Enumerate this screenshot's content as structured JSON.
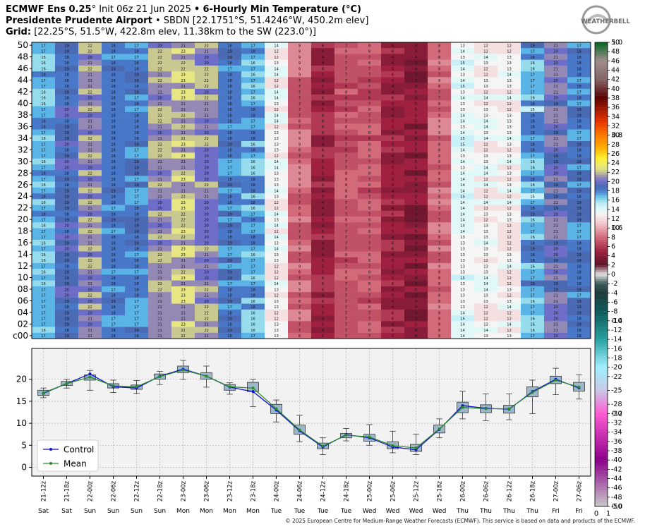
{
  "header": {
    "line1_bold_a": "ECMWF Ens 0.25",
    "line1_deg": "°",
    "line1_init": "Init 06z 21 Jun 2025",
    "line1_sep": "•",
    "line1_bold_b": "6-Hourly Min Temperature (°C)",
    "line2_bold": "Presidente Prudente Airport",
    "line2_rest": "• SBDN [22.1751°S, 51.4246°W, 450.2m elev]",
    "line3_bold": "Grid:",
    "line3_rest": "[22.25°S, 51.5°W, 422.8m elev, 11.38km to the SW (223.0°)]"
  },
  "logo": {
    "text": "WEATHERBELL"
  },
  "copyright": "© 2025 European Centre for Medium-Range Weather Forecasts (ECMWF). This service is based on data and products of the ECMWF.",
  "chart_data": [
    {
      "type": "heatmap",
      "title": "",
      "ylabel": "",
      "y_categories": [
        "c00",
        "02",
        "04",
        "06",
        "08",
        "10",
        "12",
        "14",
        "16",
        "18",
        "20",
        "22",
        "24",
        "26",
        "28",
        "30",
        "32",
        "34",
        "36",
        "38",
        "40",
        "42",
        "44",
        "46",
        "48",
        "50"
      ],
      "x_categories": [
        "21-12z",
        "21-18z",
        "22-00z",
        "22-06z",
        "22-12z",
        "22-18z",
        "23-00z",
        "23-06z",
        "23-12z",
        "23-18z",
        "24-00z",
        "24-06z",
        "24-12z",
        "24-18z",
        "25-00z",
        "25-06z",
        "25-12z",
        "25-18z",
        "26-00z",
        "26-06z",
        "26-12z",
        "26-18z",
        "27-00z",
        "27-06z"
      ],
      "control_row": [
        17,
        19,
        21,
        18,
        18,
        21,
        22,
        21,
        18,
        17,
        13,
        8,
        5,
        7,
        7,
        5,
        4,
        8,
        14,
        13,
        13,
        17,
        20,
        18
      ],
      "member_spread": [
        1,
        1,
        1.2,
        0.8,
        1,
        1,
        1.5,
        1.5,
        1,
        1.5,
        1.2,
        1.5,
        1.5,
        1,
        1.2,
        1.5,
        1.5,
        1.2,
        1.5,
        1.2,
        1.2,
        2,
        1.5,
        1.2
      ],
      "colorbar": {
        "ticks": [
          50,
          48,
          46,
          44,
          42,
          40,
          38,
          36,
          34,
          32,
          30,
          28,
          26,
          24,
          22,
          20,
          18,
          16,
          14,
          12,
          10,
          8,
          6,
          4,
          2,
          0,
          -2,
          -4,
          -6,
          -8,
          -10,
          -12,
          -14,
          -16,
          -18,
          -20,
          -22,
          -25,
          -28,
          -30,
          -32,
          -34,
          -36,
          -38,
          -40,
          -42,
          -44,
          -46,
          -48,
          -50
        ],
        "overlay_ticks": [
          1.0,
          0.8,
          0.6,
          0.4,
          0.2,
          0.0
        ],
        "bottom_labels": [
          "0",
          "1"
        ]
      }
    },
    {
      "type": "line",
      "title": "",
      "xlabel": "",
      "ylabel": "",
      "ylim": [
        -2,
        27
      ],
      "yticks": [
        0,
        5,
        10,
        15,
        20
      ],
      "grid": true,
      "legend": "bottom-left",
      "x": [
        "21-12z",
        "21-18z",
        "22-00z",
        "22-06z",
        "22-12z",
        "22-18z",
        "23-00z",
        "23-06z",
        "23-12z",
        "23-18z",
        "24-00z",
        "24-06z",
        "24-12z",
        "24-18z",
        "25-00z",
        "25-06z",
        "25-12z",
        "25-18z",
        "26-00z",
        "26-06z",
        "26-12z",
        "26-18z",
        "27-00z",
        "27-06z"
      ],
      "weekdays": [
        "Sat",
        "Sat",
        "Sun",
        "Sun",
        "Sun",
        "Sun",
        "Mon",
        "Mon",
        "Mon",
        "Mon",
        "Tue",
        "Tue",
        "Tue",
        "Tue",
        "Wed",
        "Wed",
        "Wed",
        "Wed",
        "Thu",
        "Thu",
        "Thu",
        "Thu",
        "Fri",
        "Fri"
      ],
      "series": [
        {
          "name": "Control",
          "color": "#1010d0",
          "values": [
            16.8,
            19.0,
            21.2,
            18.3,
            18.0,
            20.7,
            22.3,
            20.7,
            18.2,
            17.2,
            13.0,
            8.3,
            4.6,
            7.4,
            6.7,
            4.6,
            4.0,
            8.6,
            14.0,
            13.4,
            13.2,
            17.2,
            20.0,
            18.0
          ]
        },
        {
          "name": "Mean",
          "color": "#2a8a2a",
          "values": [
            16.9,
            19.0,
            20.5,
            18.5,
            18.3,
            20.6,
            22.1,
            20.7,
            18.3,
            18.0,
            13.3,
            8.5,
            4.8,
            7.3,
            6.9,
            4.9,
            4.4,
            8.7,
            13.6,
            13.3,
            13.3,
            17.0,
            19.8,
            18.2
          ]
        }
      ],
      "boxes": [
        {
          "whisker": [
            15.8,
            18.0
          ],
          "box": [
            16.3,
            17.5
          ]
        },
        {
          "whisker": [
            18.0,
            20.0
          ],
          "box": [
            18.6,
            19.5
          ]
        },
        {
          "whisker": [
            17.5,
            22.0
          ],
          "box": [
            19.8,
            21.0
          ]
        },
        {
          "whisker": [
            17.0,
            19.8
          ],
          "box": [
            18.0,
            19.0
          ]
        },
        {
          "whisker": [
            16.8,
            19.7
          ],
          "box": [
            17.7,
            18.7
          ]
        },
        {
          "whisker": [
            18.8,
            21.8
          ],
          "box": [
            20.0,
            21.2
          ]
        },
        {
          "whisker": [
            20.0,
            24.3
          ],
          "box": [
            21.5,
            23.0
          ]
        },
        {
          "whisker": [
            18.2,
            23.0
          ],
          "box": [
            20.0,
            21.5
          ]
        },
        {
          "whisker": [
            16.6,
            19.2
          ],
          "box": [
            17.5,
            18.8
          ]
        },
        {
          "whisker": [
            13.8,
            20.0
          ],
          "box": [
            17.2,
            19.3
          ]
        },
        {
          "whisker": [
            10.3,
            15.3
          ],
          "box": [
            12.2,
            14.3
          ]
        },
        {
          "whisker": [
            5.8,
            11.8
          ],
          "box": [
            7.5,
            9.6
          ]
        },
        {
          "whisker": [
            2.9,
            6.7
          ],
          "box": [
            4.2,
            5.5
          ]
        },
        {
          "whisker": [
            6.0,
            8.8
          ],
          "box": [
            6.7,
            7.7
          ]
        },
        {
          "whisker": [
            5.0,
            9.7
          ],
          "box": [
            5.9,
            7.5
          ]
        },
        {
          "whisker": [
            3.3,
            8.2
          ],
          "box": [
            4.2,
            5.8
          ]
        },
        {
          "whisker": [
            2.9,
            7.5
          ],
          "box": [
            3.6,
            5.2
          ]
        },
        {
          "whisker": [
            6.7,
            11.0
          ],
          "box": [
            7.8,
            9.6
          ]
        },
        {
          "whisker": [
            11.0,
            17.3
          ],
          "box": [
            12.4,
            14.8
          ]
        },
        {
          "whisker": [
            10.6,
            16.7
          ],
          "box": [
            12.4,
            14.2
          ]
        },
        {
          "whisker": [
            10.8,
            16.7
          ],
          "box": [
            12.3,
            14.1
          ]
        },
        {
          "whisker": [
            12.2,
            19.8
          ],
          "box": [
            16.0,
            18.3
          ]
        },
        {
          "whisker": [
            16.5,
            22.5
          ],
          "box": [
            19.0,
            20.7
          ]
        },
        {
          "whisker": [
            15.5,
            21.0
          ],
          "box": [
            17.3,
            19.3
          ]
        }
      ]
    }
  ]
}
